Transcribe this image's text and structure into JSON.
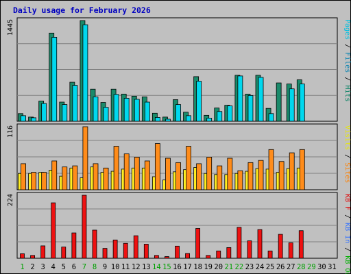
{
  "chart_data": {
    "type": "bar",
    "title": "Daily usage for February 2026",
    "categories": [
      "1",
      "2",
      "3",
      "4",
      "5",
      "6",
      "7",
      "8",
      "9",
      "10",
      "11",
      "12",
      "13",
      "14",
      "15",
      "16",
      "17",
      "18",
      "19",
      "20",
      "21",
      "22",
      "23",
      "24",
      "25",
      "26",
      "27",
      "28",
      "29",
      "30",
      "31"
    ],
    "weekend_days": [
      1,
      7,
      8,
      14,
      15,
      21,
      22,
      28,
      29
    ],
    "panels": [
      {
        "id": "hits",
        "ylabel_max": "1445",
        "ymax": 1445,
        "right_label": [
          {
            "text": "Pages",
            "color": "#00c0e0"
          },
          {
            "text": " / ",
            "color": "#000000"
          },
          {
            "text": "Files",
            "color": "#0080b0"
          },
          {
            "text": " / ",
            "color": "#000000"
          },
          {
            "text": "Hits",
            "color": "#008060"
          }
        ],
        "series": [
          {
            "key": "hits",
            "color": "#1a8a6a",
            "values": [
              110,
              60,
              290,
              1265,
              275,
              560,
              1445,
              460,
              270,
              460,
              390,
              360,
              350,
              115,
              60,
              310,
              130,
              640,
              85,
              190,
              230,
              660,
              390,
              660,
              185,
              550,
              535,
              595,
              0,
              0,
              0
            ]
          },
          {
            "key": "files",
            "color": "#00d8ee",
            "values": [
              80,
              50,
              255,
              1205,
              240,
              515,
              1385,
              350,
              200,
              385,
              330,
              315,
              275,
              55,
              30,
              240,
              80,
              575,
              45,
              140,
              220,
              650,
              370,
              630,
              110,
              0,
              465,
              535,
              0,
              0,
              0
            ]
          }
        ]
      },
      {
        "id": "visits",
        "ylabel_max": "116",
        "ymax": 116,
        "right_label": [
          {
            "text": "Visits",
            "color": "#e8e800"
          },
          {
            "text": " / ",
            "color": "#000000"
          },
          {
            "text": "Sites",
            "color": "#ff8000"
          }
        ],
        "series": [
          {
            "key": "visits",
            "color": "#ffee22",
            "values": [
              30,
              30,
              32,
              36,
              25,
              40,
              22,
              42,
              32,
              34,
              38,
              40,
              40,
              24,
              18,
              33,
              37,
              41,
              30,
              28,
              28,
              30,
              34,
              39,
              38,
              32,
              39,
              40,
              0,
              0,
              0
            ]
          },
          {
            "key": "sites",
            "color": "#ff8c1a",
            "values": [
              48,
              32,
              32,
              53,
              42,
              44,
              116,
              48,
              40,
              80,
              66,
              60,
              53,
              85,
              58,
              50,
              80,
              48,
              60,
              44,
              58,
              35,
              50,
              54,
              74,
              52,
              68,
              74,
              0,
              0,
              0
            ]
          }
        ]
      },
      {
        "id": "kbf",
        "ylabel_max": "224",
        "ymax": 224,
        "right_label": [
          {
            "text": "KB F",
            "color": "#e00000"
          },
          {
            "text": " / ",
            "color": "#000000"
          },
          {
            "text": "KB In",
            "color": "#3070ff"
          },
          {
            "text": " / ",
            "color": "#000000"
          },
          {
            "text": "KB Out",
            "color": "#00b000"
          }
        ],
        "series": [
          {
            "key": "kbf",
            "color": "#ee1111",
            "values": [
              16,
              10,
              44,
              197,
              40,
              90,
              224,
              100,
              35,
              65,
              53,
              80,
              50,
              10,
              6,
              43,
              17,
              106,
              10,
              26,
              38,
              110,
              62,
              102,
              26,
              85,
              55,
              98,
              0,
              0,
              0
            ]
          }
        ]
      }
    ],
    "grid": true,
    "colors": {
      "title": "#0000c0",
      "weekday_label": "#000000",
      "weekend_label": "#00a000",
      "plot_bg": "#c0c0c0",
      "grid": "#808080"
    }
  }
}
